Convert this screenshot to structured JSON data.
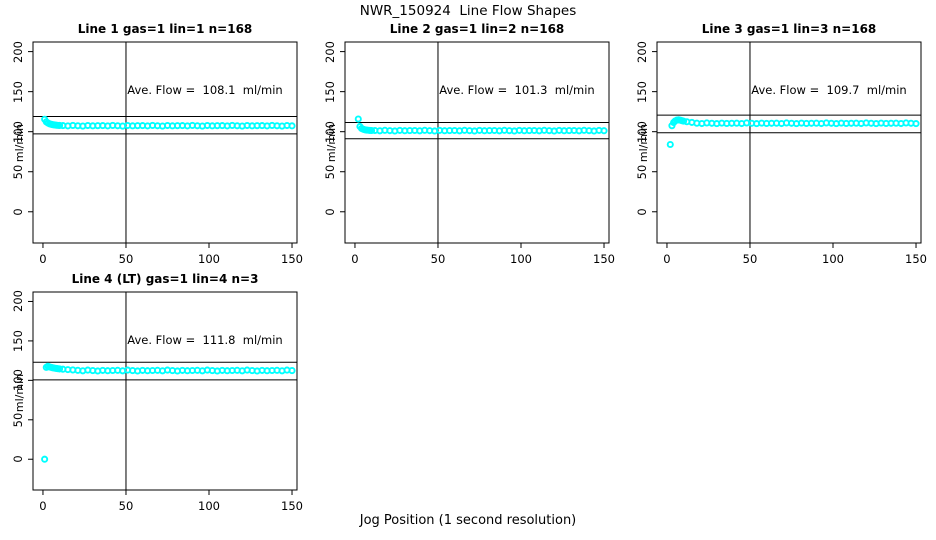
{
  "page_title": "NWR_150924  Line Flow Shapes",
  "xlabel": "Jog Position (1 second resolution)",
  "colors": {
    "point": "#00FFFF",
    "axis": "#000000",
    "background": "#FFFFFF"
  },
  "chart_data": [
    {
      "type": "scatter",
      "title": "Line 1 gas=1 lin=1 n=168",
      "ave_flow_label": "Ave. Flow =  108.1  ml/min",
      "ave_flow_value": 108.1,
      "ylab": "ml/min",
      "x_ticks": [
        0,
        50,
        100,
        150
      ],
      "y_ticks": [
        0,
        50,
        100,
        150,
        200
      ],
      "xlim": [
        -6,
        153
      ],
      "ylim": [
        -39,
        212
      ],
      "vline_x": 50,
      "ref_lines": {
        "lower": 97.3,
        "upper": 118.9
      },
      "points": [
        [
          1,
          115.5
        ],
        [
          2,
          112.3
        ],
        [
          3,
          110.8
        ],
        [
          4,
          109.8
        ],
        [
          5,
          109.2
        ],
        [
          6,
          108.7
        ],
        [
          7,
          108.4
        ],
        [
          8,
          108.1
        ],
        [
          9,
          107.9
        ],
        [
          10,
          107.8
        ],
        [
          12,
          107.6
        ],
        [
          15,
          107.2
        ],
        [
          18,
          107.8
        ],
        [
          21,
          107.4
        ],
        [
          24,
          107.0
        ],
        [
          27,
          107.7
        ],
        [
          30,
          107.3
        ],
        [
          33,
          107.5
        ],
        [
          36,
          107.6
        ],
        [
          39,
          107.2
        ],
        [
          42,
          107.8
        ],
        [
          45,
          107.4
        ],
        [
          48,
          107.0
        ],
        [
          51,
          107.7
        ],
        [
          54,
          107.3
        ],
        [
          57,
          107.5
        ],
        [
          60,
          107.6
        ],
        [
          63,
          107.2
        ],
        [
          66,
          107.8
        ],
        [
          69,
          107.4
        ],
        [
          72,
          107.0
        ],
        [
          75,
          107.7
        ],
        [
          78,
          107.3
        ],
        [
          81,
          107.5
        ],
        [
          84,
          107.6
        ],
        [
          87,
          107.2
        ],
        [
          90,
          107.8
        ],
        [
          93,
          107.4
        ],
        [
          96,
          107.0
        ],
        [
          99,
          107.7
        ],
        [
          102,
          107.3
        ],
        [
          105,
          107.5
        ],
        [
          108,
          107.6
        ],
        [
          111,
          107.2
        ],
        [
          114,
          107.8
        ],
        [
          117,
          107.4
        ],
        [
          120,
          107.0
        ],
        [
          123,
          107.7
        ],
        [
          126,
          107.3
        ],
        [
          129,
          107.5
        ],
        [
          132,
          107.6
        ],
        [
          135,
          107.2
        ],
        [
          138,
          107.8
        ],
        [
          141,
          107.4
        ],
        [
          144,
          107.0
        ],
        [
          147,
          107.7
        ],
        [
          150,
          107.3
        ]
      ]
    },
    {
      "type": "scatter",
      "title": "Line 2 gas=1 lin=2 n=168",
      "ave_flow_label": "Ave. Flow =  101.3  ml/min",
      "ave_flow_value": 101.3,
      "ylab": "ml/min",
      "x_ticks": [
        0,
        50,
        100,
        150
      ],
      "y_ticks": [
        0,
        50,
        100,
        150,
        200
      ],
      "xlim": [
        -6,
        153
      ],
      "ylim": [
        -39,
        212
      ],
      "vline_x": 50,
      "ref_lines": {
        "lower": 91.2,
        "upper": 111.4
      },
      "points": [
        [
          2,
          115.8
        ],
        [
          3,
          106.5
        ],
        [
          4,
          104.0
        ],
        [
          5,
          103.0
        ],
        [
          6,
          102.4
        ],
        [
          7,
          102.0
        ],
        [
          8,
          101.8
        ],
        [
          9,
          101.6
        ],
        [
          10,
          101.5
        ],
        [
          12,
          101.5
        ],
        [
          15,
          101.1
        ],
        [
          18,
          101.7
        ],
        [
          21,
          101.3
        ],
        [
          24,
          100.9
        ],
        [
          27,
          101.6
        ],
        [
          30,
          101.2
        ],
        [
          33,
          101.4
        ],
        [
          36,
          101.5
        ],
        [
          39,
          101.1
        ],
        [
          42,
          101.7
        ],
        [
          45,
          101.3
        ],
        [
          48,
          100.9
        ],
        [
          51,
          101.6
        ],
        [
          54,
          101.2
        ],
        [
          57,
          101.4
        ],
        [
          60,
          101.5
        ],
        [
          63,
          101.1
        ],
        [
          66,
          101.7
        ],
        [
          69,
          101.3
        ],
        [
          72,
          100.9
        ],
        [
          75,
          101.6
        ],
        [
          78,
          101.2
        ],
        [
          81,
          101.4
        ],
        [
          84,
          101.5
        ],
        [
          87,
          101.1
        ],
        [
          90,
          101.7
        ],
        [
          93,
          101.3
        ],
        [
          96,
          100.9
        ],
        [
          99,
          101.6
        ],
        [
          102,
          101.2
        ],
        [
          105,
          101.4
        ],
        [
          108,
          101.5
        ],
        [
          111,
          101.1
        ],
        [
          114,
          101.7
        ],
        [
          117,
          101.3
        ],
        [
          120,
          100.9
        ],
        [
          123,
          101.6
        ],
        [
          126,
          101.2
        ],
        [
          129,
          101.4
        ],
        [
          132,
          101.5
        ],
        [
          135,
          101.1
        ],
        [
          138,
          101.7
        ],
        [
          141,
          101.3
        ],
        [
          144,
          100.9
        ],
        [
          147,
          101.6
        ],
        [
          150,
          101.2
        ]
      ]
    },
    {
      "type": "scatter",
      "title": "Line 3 gas=1 lin=3 n=168",
      "ave_flow_label": "Ave. Flow =  109.7  ml/min",
      "ave_flow_value": 109.7,
      "ylab": "ml/min",
      "x_ticks": [
        0,
        50,
        100,
        150
      ],
      "y_ticks": [
        0,
        50,
        100,
        150,
        200
      ],
      "xlim": [
        -6,
        153
      ],
      "ylim": [
        -39,
        212
      ],
      "vline_x": 50,
      "ref_lines": {
        "lower": 98.7,
        "upper": 120.7
      },
      "points": [
        [
          2,
          84.0
        ],
        [
          3,
          107.5
        ],
        [
          4,
          111.5
        ],
        [
          5,
          113.5
        ],
        [
          6,
          114.5
        ],
        [
          7,
          114.8
        ],
        [
          8,
          114.4
        ],
        [
          9,
          113.8
        ],
        [
          10,
          113.2
        ],
        [
          12,
          112.4
        ],
        [
          15,
          111.6
        ],
        [
          18,
          110.6
        ],
        [
          21,
          110.2
        ],
        [
          24,
          110.9
        ],
        [
          27,
          110.5
        ],
        [
          30,
          110.1
        ],
        [
          33,
          110.7
        ],
        [
          36,
          110.3
        ],
        [
          39,
          110.5
        ],
        [
          42,
          110.6
        ],
        [
          45,
          110.2
        ],
        [
          48,
          110.9
        ],
        [
          51,
          110.5
        ],
        [
          54,
          110.1
        ],
        [
          57,
          110.7
        ],
        [
          60,
          110.3
        ],
        [
          63,
          110.5
        ],
        [
          66,
          110.6
        ],
        [
          69,
          110.2
        ],
        [
          72,
          110.9
        ],
        [
          75,
          110.5
        ],
        [
          78,
          110.1
        ],
        [
          81,
          110.7
        ],
        [
          84,
          110.3
        ],
        [
          87,
          110.5
        ],
        [
          90,
          110.6
        ],
        [
          93,
          110.2
        ],
        [
          96,
          110.9
        ],
        [
          99,
          110.5
        ],
        [
          102,
          110.1
        ],
        [
          105,
          110.7
        ],
        [
          108,
          110.3
        ],
        [
          111,
          110.5
        ],
        [
          114,
          110.6
        ],
        [
          117,
          110.2
        ],
        [
          120,
          110.9
        ],
        [
          123,
          110.5
        ],
        [
          126,
          110.1
        ],
        [
          129,
          110.7
        ],
        [
          132,
          110.3
        ],
        [
          135,
          110.5
        ],
        [
          138,
          110.6
        ],
        [
          141,
          110.2
        ],
        [
          144,
          110.9
        ],
        [
          147,
          110.5
        ],
        [
          150,
          110.1
        ]
      ]
    },
    {
      "type": "scatter",
      "title": "Line 4 (LT) gas=1 lin=4 n=3",
      "ave_flow_label": "Ave. Flow =  111.8  ml/min",
      "ave_flow_value": 111.8,
      "ylab": "ml/min",
      "x_ticks": [
        0,
        50,
        100,
        150
      ],
      "y_ticks": [
        0,
        50,
        100,
        150,
        200
      ],
      "xlim": [
        -6,
        153
      ],
      "ylim": [
        -39,
        212
      ],
      "vline_x": 50,
      "ref_lines": {
        "lower": 100.6,
        "upper": 123.0
      },
      "points": [
        [
          1,
          0.0
        ],
        [
          2,
          116.5
        ],
        [
          3,
          117.8
        ],
        [
          4,
          117.0
        ],
        [
          5,
          116.4
        ],
        [
          6,
          115.9
        ],
        [
          7,
          115.5
        ],
        [
          8,
          115.1
        ],
        [
          9,
          114.8
        ],
        [
          10,
          114.5
        ],
        [
          12,
          114.1
        ],
        [
          15,
          113.6
        ],
        [
          18,
          113.2
        ],
        [
          21,
          112.7
        ],
        [
          24,
          112.1
        ],
        [
          27,
          113.0
        ],
        [
          30,
          112.4
        ],
        [
          33,
          111.9
        ],
        [
          36,
          112.6
        ],
        [
          39,
          112.2
        ],
        [
          42,
          112.5
        ],
        [
          45,
          112.7
        ],
        [
          48,
          112.1
        ],
        [
          51,
          113.0
        ],
        [
          54,
          112.4
        ],
        [
          57,
          111.9
        ],
        [
          60,
          112.6
        ],
        [
          63,
          112.2
        ],
        [
          66,
          112.5
        ],
        [
          69,
          112.7
        ],
        [
          72,
          112.1
        ],
        [
          75,
          113.0
        ],
        [
          78,
          112.4
        ],
        [
          81,
          111.9
        ],
        [
          84,
          112.6
        ],
        [
          87,
          112.2
        ],
        [
          90,
          112.5
        ],
        [
          93,
          112.7
        ],
        [
          96,
          112.1
        ],
        [
          99,
          113.0
        ],
        [
          102,
          112.4
        ],
        [
          105,
          111.9
        ],
        [
          108,
          112.6
        ],
        [
          111,
          112.2
        ],
        [
          114,
          112.5
        ],
        [
          117,
          112.7
        ],
        [
          120,
          112.1
        ],
        [
          123,
          113.0
        ],
        [
          126,
          112.4
        ],
        [
          129,
          111.9
        ],
        [
          132,
          112.6
        ],
        [
          135,
          112.2
        ],
        [
          138,
          112.5
        ],
        [
          141,
          112.7
        ],
        [
          144,
          112.1
        ],
        [
          147,
          113.0
        ],
        [
          150,
          112.4
        ]
      ]
    }
  ]
}
